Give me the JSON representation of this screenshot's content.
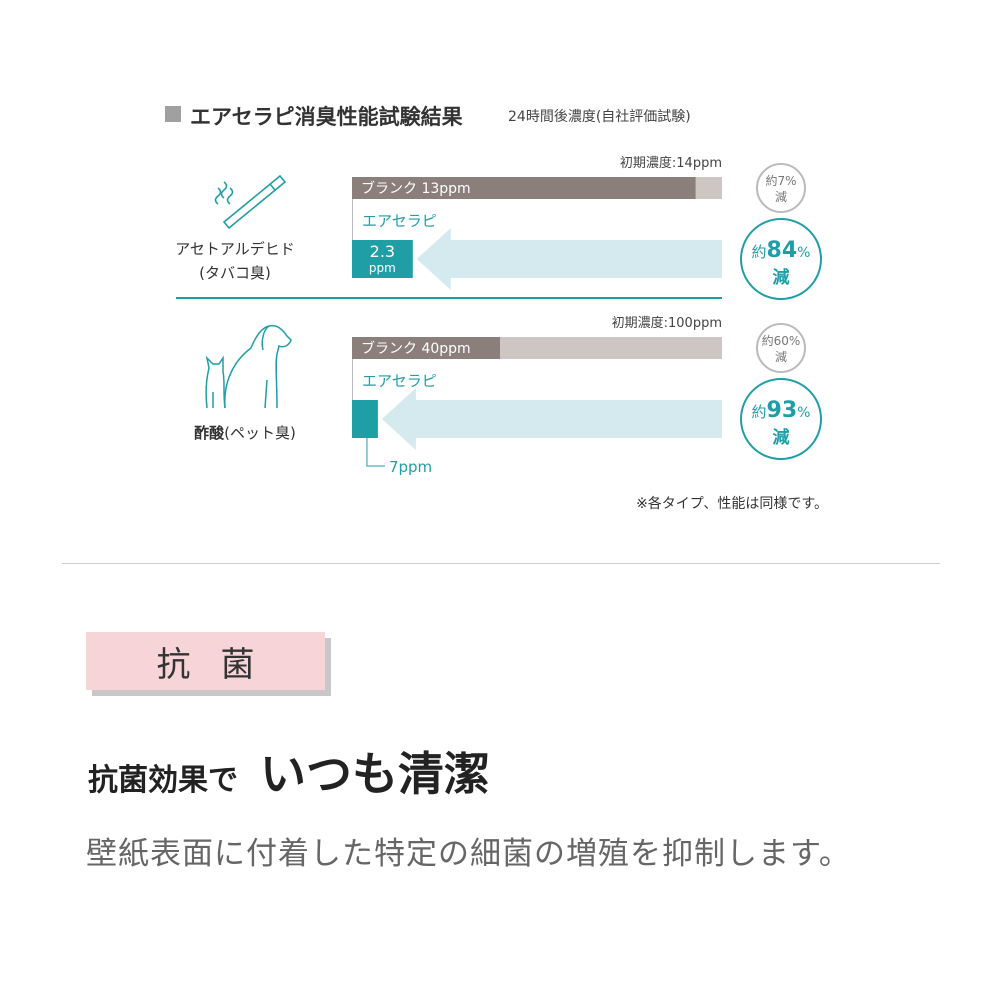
{
  "header": {
    "title": "エアセラピ消臭性能試験結果",
    "subtitle": "24時間後濃度(自社評価試験)"
  },
  "colors": {
    "blank_dark": "#8a7f7a",
    "blank_light": "#cdc6c3",
    "teal": "#1f9ea6",
    "arrow": "#d4eaee",
    "pink": "#f7d4d8"
  },
  "chart_data": {
    "type": "bar",
    "unit": "ppm",
    "groups": [
      {
        "name": "アセトアルデヒド",
        "sub": "(タバコ臭)",
        "icon": "cigarette-icon",
        "initial": 14,
        "initial_label": "初期濃度:14ppm",
        "blank": 13,
        "blank_label": "ブランク 13ppm",
        "product": 2.3,
        "product_name": "エアセラピ",
        "product_value_label": "2.3",
        "product_unit_label": "ppm",
        "blank_reduction_prefix": "約",
        "blank_reduction": "7%",
        "blank_reduction_suffix": "減",
        "product_reduction_prefix": "約",
        "product_reduction": "84",
        "product_reduction_pct": "%",
        "product_reduction_suffix": "減"
      },
      {
        "name": "酢酸",
        "sub": "(ペット臭)",
        "icon": "pet-dog-cat-icon",
        "initial": 100,
        "initial_label": "初期濃度:100ppm",
        "blank": 40,
        "blank_label": "ブランク 40ppm",
        "product": 7,
        "product_name": "エアセラピ",
        "product_value_label": "7ppm",
        "blank_reduction_prefix": "約",
        "blank_reduction": "60%",
        "blank_reduction_suffix": "減",
        "product_reduction_prefix": "約",
        "product_reduction": "93",
        "product_reduction_pct": "%",
        "product_reduction_suffix": "減"
      }
    ]
  },
  "note": "※各タイプ、性能は同様です。",
  "section": {
    "tag": "抗菌",
    "headline_small": "抗菌効果で",
    "headline_big": "いつも清潔",
    "body": "壁紙表面に付着した特定の細菌の増殖を抑制します。"
  }
}
